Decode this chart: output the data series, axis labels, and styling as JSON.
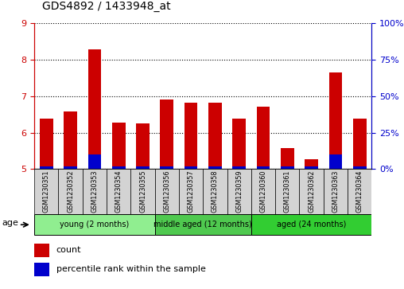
{
  "title": "GDS4892 / 1433948_at",
  "samples": [
    "GSM1230351",
    "GSM1230352",
    "GSM1230353",
    "GSM1230354",
    "GSM1230355",
    "GSM1230356",
    "GSM1230357",
    "GSM1230358",
    "GSM1230359",
    "GSM1230360",
    "GSM1230361",
    "GSM1230362",
    "GSM1230363",
    "GSM1230364"
  ],
  "count_values": [
    6.38,
    6.58,
    8.28,
    6.28,
    6.25,
    6.9,
    6.82,
    6.82,
    6.38,
    6.72,
    5.58,
    5.28,
    7.65,
    6.38
  ],
  "percentile_pct": [
    2,
    2,
    10,
    2,
    2,
    2,
    2,
    2,
    2,
    2,
    2,
    2,
    10,
    2
  ],
  "groups": [
    {
      "label": "young (2 months)",
      "start": 0,
      "end": 5,
      "color": "#90ee90"
    },
    {
      "label": "middle aged (12 months)",
      "start": 5,
      "end": 9,
      "color": "#4fc94f"
    },
    {
      "label": "aged (24 months)",
      "start": 9,
      "end": 14,
      "color": "#32cd32"
    }
  ],
  "ylim": [
    5,
    9
  ],
  "yticks": [
    5,
    6,
    7,
    8,
    9
  ],
  "y2ticks": [
    0,
    25,
    50,
    75,
    100
  ],
  "bar_color_red": "#cc0000",
  "bar_color_blue": "#0000cc",
  "bar_width": 0.55,
  "tick_color_left": "#cc0000",
  "tick_color_right": "#0000cc",
  "legend_red": "count",
  "legend_blue": "percentile rank within the sample",
  "age_label": "age",
  "group_bg": "#d3d3d3"
}
